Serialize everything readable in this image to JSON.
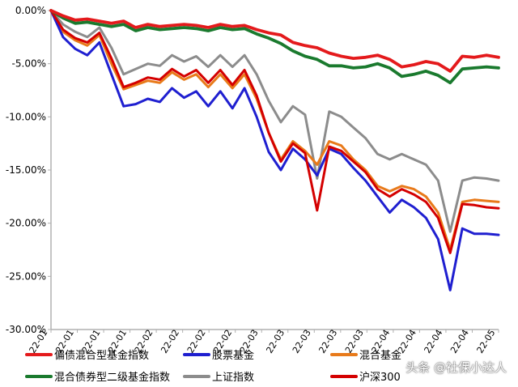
{
  "chart_data": {
    "type": "line",
    "title": "",
    "xlabel": "",
    "ylabel": "",
    "ylim": [
      -30,
      0
    ],
    "yticks": [
      "0.00%",
      "-5.00%",
      "-10.00%",
      "-15.00%",
      "-20.00%",
      "-25.00%",
      "-30.00%"
    ],
    "ytick_values": [
      0,
      -5,
      -10,
      -15,
      -20,
      -25,
      -30
    ],
    "xticks": [
      "22-01",
      "22-01",
      "22-01",
      "22-01",
      "22-02",
      "22-02",
      "22-02",
      "22-02",
      "22-03",
      "22-03",
      "22-03",
      "22-03",
      "22-03",
      "22-04",
      "22-04",
      "22-04",
      "22-04",
      "22-05"
    ],
    "grid": false,
    "legend_placement": "bottom",
    "series": [
      {
        "name": "偏债混合型基金指数",
        "color": "#e41a1c",
        "values": [
          0,
          -0.5,
          -0.9,
          -0.8,
          -1.0,
          -1.2,
          -1.0,
          -1.6,
          -1.3,
          -1.5,
          -1.4,
          -1.3,
          -1.4,
          -1.6,
          -1.3,
          -1.5,
          -1.4,
          -1.8,
          -2.1,
          -2.3,
          -3.0,
          -3.3,
          -3.5,
          -4.0,
          -4.3,
          -4.5,
          -4.4,
          -4.2,
          -4.6,
          -5.3,
          -5.1,
          -4.8,
          -5.0,
          -5.7,
          -4.3,
          -4.4,
          -4.2,
          -4.4
        ]
      },
      {
        "name": "股票基金",
        "color": "#1f1fd0",
        "values": [
          0,
          -2.5,
          -3.6,
          -4.2,
          -3.0,
          -6.0,
          -9.0,
          -8.8,
          -8.3,
          -8.6,
          -7.3,
          -8.2,
          -7.6,
          -9.0,
          -7.6,
          -9.2,
          -7.3,
          -10.0,
          -13.3,
          -15.0,
          -13.0,
          -14.0,
          -15.5,
          -13.0,
          -13.5,
          -14.8,
          -16.0,
          -17.5,
          -19.0,
          -17.8,
          -18.5,
          -19.5,
          -21.5,
          -26.3,
          -20.5,
          -21.0,
          -21.0,
          -21.1
        ]
      },
      {
        "name": "混合基金",
        "color": "#e87a1a",
        "values": [
          0,
          -2.0,
          -2.8,
          -3.3,
          -2.3,
          -5.0,
          -7.4,
          -7.0,
          -6.6,
          -6.8,
          -5.8,
          -6.5,
          -6.0,
          -7.2,
          -6.0,
          -7.3,
          -6.0,
          -8.3,
          -11.5,
          -14.0,
          -12.3,
          -13.2,
          -14.5,
          -12.3,
          -12.7,
          -14.0,
          -15.0,
          -16.5,
          -17.0,
          -16.5,
          -16.8,
          -17.5,
          -19.0,
          -22.5,
          -18.0,
          -17.8,
          -17.9,
          -18.0
        ]
      },
      {
        "name": "混合债券型二级基金指数",
        "color": "#1a7a2e",
        "values": [
          0,
          -0.7,
          -1.2,
          -1.1,
          -1.3,
          -1.5,
          -1.3,
          -1.9,
          -1.6,
          -1.8,
          -1.7,
          -1.6,
          -1.7,
          -1.9,
          -1.6,
          -1.8,
          -1.7,
          -2.2,
          -2.6,
          -3.1,
          -3.8,
          -4.3,
          -4.6,
          -5.2,
          -5.2,
          -5.4,
          -5.3,
          -5.0,
          -5.4,
          -6.2,
          -6.0,
          -5.7,
          -6.1,
          -6.8,
          -5.5,
          -5.4,
          -5.3,
          -5.4
        ]
      },
      {
        "name": "上证指数",
        "color": "#8c8c8c",
        "values": [
          0,
          -1.3,
          -2.0,
          -2.5,
          -1.6,
          -3.5,
          -6.0,
          -5.5,
          -5.0,
          -5.2,
          -4.2,
          -4.8,
          -4.3,
          -5.3,
          -4.2,
          -5.3,
          -4.2,
          -6.0,
          -8.5,
          -10.5,
          -9.0,
          -9.8,
          -15.8,
          -9.5,
          -10.0,
          -11.0,
          -12.0,
          -13.5,
          -14.0,
          -13.5,
          -14.0,
          -14.5,
          -16.0,
          -20.8,
          -16.0,
          -15.7,
          -15.8,
          -16.0
        ]
      },
      {
        "name": "沪深300",
        "color": "#d40000",
        "values": [
          0,
          -1.8,
          -2.6,
          -3.0,
          -2.1,
          -4.5,
          -7.2,
          -6.8,
          -6.3,
          -6.5,
          -5.5,
          -6.2,
          -5.6,
          -6.8,
          -5.6,
          -7.0,
          -5.6,
          -8.0,
          -11.5,
          -14.2,
          -12.5,
          -13.4,
          -18.8,
          -12.8,
          -13.2,
          -14.2,
          -15.2,
          -16.8,
          -17.5,
          -16.8,
          -17.3,
          -18.0,
          -19.5,
          -22.8,
          -18.2,
          -18.3,
          -18.5,
          -18.6
        ]
      }
    ]
  },
  "watermark": "头条 @社保小达人"
}
